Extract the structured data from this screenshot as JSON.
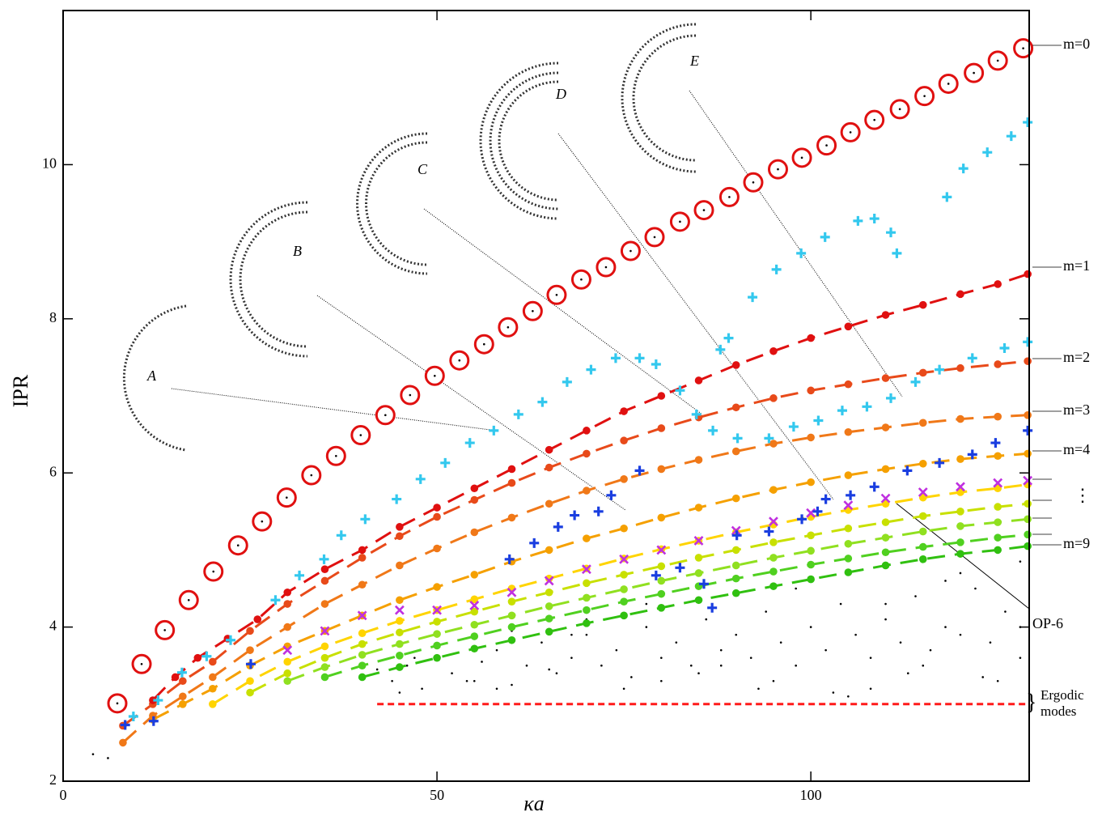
{
  "chart_data": {
    "type": "scatter",
    "xlabel": "κa",
    "ylabel": "IPR",
    "xlim": [
      0,
      129.2
    ],
    "ylim": [
      2,
      12
    ],
    "xticks": [
      0,
      50,
      100
    ],
    "yticks": [
      2,
      4,
      6,
      8,
      10
    ],
    "annotations": [
      "A",
      "B",
      "C",
      "D",
      "E"
    ],
    "right_labels": [
      "m=0",
      "m=1",
      "m=2",
      "m=3",
      "m=4",
      "⋮",
      "m=9",
      "OP-6",
      "Ergodic",
      "modes"
    ],
    "series": [
      {
        "marker": "point",
        "line": "none",
        "color": "#000000",
        "x": [
          4,
          6,
          42,
          44,
          46,
          48,
          50,
          52,
          54,
          56,
          58,
          60,
          62,
          64,
          66,
          68,
          70,
          72,
          74,
          76,
          78,
          80,
          82,
          84,
          86,
          88,
          90,
          92,
          94,
          96,
          98,
          100,
          102,
          104,
          106,
          108,
          110,
          112,
          114,
          116,
          118,
          120,
          122,
          124,
          126,
          128,
          45,
          55,
          65,
          75,
          85,
          95,
          105,
          115,
          125,
          60,
          70,
          80,
          90,
          100,
          110,
          120,
          128,
          50,
          47,
          58,
          68,
          78,
          88,
          98,
          108,
          118,
          128,
          93,
          103,
          113,
          123
        ],
        "values": [
          2.35,
          2.3,
          3.45,
          3.3,
          3.5,
          3.2,
          3.6,
          3.4,
          3.3,
          3.55,
          3.7,
          3.25,
          3.5,
          3.8,
          3.4,
          3.6,
          3.9,
          3.5,
          3.7,
          3.35,
          4.0,
          3.6,
          3.8,
          3.5,
          4.1,
          3.7,
          3.9,
          3.6,
          4.2,
          3.8,
          3.5,
          4.0,
          3.7,
          4.3,
          3.9,
          3.6,
          4.1,
          3.8,
          4.4,
          3.7,
          4.0,
          3.9,
          4.5,
          3.8,
          4.2,
          3.6,
          3.15,
          3.3,
          3.45,
          3.2,
          3.4,
          3.3,
          3.1,
          3.5,
          3.3,
          3.95,
          4.1,
          3.3,
          4.45,
          4.6,
          4.3,
          4.7,
          4.85,
          3.9,
          3.6,
          3.2,
          3.9,
          4.3,
          3.5,
          4.5,
          3.2,
          4.6,
          4.0,
          3.2,
          3.15,
          3.4,
          3.35
        ]
      },
      {
        "marker": "none",
        "line": "dashed",
        "color": "#ff1a1a",
        "x": [
          42,
          129
        ],
        "values": [
          3,
          3
        ]
      },
      {
        "marker": "dot",
        "line": "dashed",
        "color": "#30c010",
        "x": [
          40,
          45,
          50,
          55,
          60,
          65,
          70,
          75,
          80,
          85,
          90,
          95,
          100,
          105,
          110,
          115,
          120,
          125,
          129
        ],
        "values": [
          3.35,
          3.48,
          3.6,
          3.72,
          3.83,
          3.94,
          4.05,
          4.15,
          4.25,
          4.35,
          4.44,
          4.53,
          4.62,
          4.71,
          4.8,
          4.88,
          4.95,
          5.0,
          5.05
        ]
      },
      {
        "marker": "dot",
        "line": "dashed",
        "color": "#50d020",
        "x": [
          35,
          40,
          45,
          50,
          55,
          60,
          65,
          70,
          75,
          80,
          85,
          90,
          95,
          100,
          105,
          110,
          115,
          120,
          125,
          129
        ],
        "values": [
          3.35,
          3.5,
          3.63,
          3.76,
          3.88,
          4.0,
          4.11,
          4.22,
          4.33,
          4.43,
          4.53,
          4.63,
          4.72,
          4.81,
          4.89,
          4.97,
          5.04,
          5.1,
          5.16,
          5.2
        ]
      },
      {
        "marker": "dot",
        "line": "dashed",
        "color": "#90e020",
        "x": [
          30,
          35,
          40,
          45,
          50,
          55,
          60,
          65,
          70,
          75,
          80,
          85,
          90,
          95,
          100,
          105,
          110,
          115,
          120,
          125,
          129
        ],
        "values": [
          3.3,
          3.48,
          3.64,
          3.78,
          3.91,
          4.03,
          4.15,
          4.27,
          4.38,
          4.49,
          4.6,
          4.7,
          4.8,
          4.9,
          4.99,
          5.08,
          5.16,
          5.24,
          5.31,
          5.36,
          5.4
        ]
      },
      {
        "marker": "dot",
        "line": "dashed",
        "color": "#c8e000",
        "x": [
          25,
          30,
          35,
          40,
          45,
          50,
          55,
          60,
          65,
          70,
          75,
          80,
          85,
          90,
          95,
          100,
          105,
          110,
          115,
          120,
          125,
          129
        ],
        "values": [
          3.15,
          3.4,
          3.6,
          3.78,
          3.93,
          4.07,
          4.2,
          4.33,
          4.45,
          4.57,
          4.68,
          4.79,
          4.9,
          5.0,
          5.1,
          5.19,
          5.28,
          5.36,
          5.44,
          5.5,
          5.56,
          5.6
        ]
      },
      {
        "marker": "dot",
        "line": "dashed",
        "color": "#ffd400",
        "x": [
          20,
          25,
          30,
          35,
          40,
          45,
          50,
          55,
          60,
          65,
          70,
          75,
          80,
          85,
          90,
          95,
          100,
          105,
          110,
          115,
          120,
          125,
          129
        ],
        "values": [
          3.0,
          3.3,
          3.55,
          3.75,
          3.92,
          4.08,
          4.22,
          4.36,
          4.5,
          4.63,
          4.76,
          4.89,
          5.01,
          5.12,
          5.23,
          5.33,
          5.43,
          5.52,
          5.6,
          5.68,
          5.75,
          5.8,
          5.85
        ]
      },
      {
        "marker": "dot",
        "line": "dashed",
        "color": "#f5a000",
        "x": [
          12,
          16,
          20,
          25,
          30,
          35,
          40,
          45,
          50,
          55,
          60,
          65,
          70,
          75,
          80,
          85,
          90,
          95,
          100,
          105,
          110,
          115,
          120,
          125,
          129
        ],
        "values": [
          2.8,
          3.0,
          3.2,
          3.5,
          3.75,
          3.95,
          4.15,
          4.35,
          4.52,
          4.68,
          4.85,
          5.0,
          5.15,
          5.28,
          5.42,
          5.55,
          5.67,
          5.78,
          5.88,
          5.97,
          6.05,
          6.12,
          6.18,
          6.22,
          6.25
        ]
      },
      {
        "marker": "dot",
        "line": "dashed",
        "color": "#f07818",
        "x": [
          8,
          12,
          16,
          20,
          25,
          30,
          35,
          40,
          45,
          50,
          55,
          60,
          65,
          70,
          75,
          80,
          85,
          90,
          95,
          100,
          105,
          110,
          115,
          120,
          125,
          129
        ],
        "values": [
          2.5,
          2.85,
          3.1,
          3.35,
          3.7,
          4.0,
          4.3,
          4.55,
          4.8,
          5.02,
          5.23,
          5.42,
          5.6,
          5.77,
          5.92,
          6.05,
          6.17,
          6.28,
          6.38,
          6.46,
          6.53,
          6.59,
          6.65,
          6.7,
          6.73,
          6.75
        ]
      },
      {
        "marker": "dot",
        "line": "dashed",
        "color": "#e84a1a",
        "x": [
          8,
          12,
          16,
          20,
          25,
          30,
          35,
          40,
          45,
          50,
          55,
          60,
          65,
          70,
          75,
          80,
          85,
          90,
          95,
          100,
          105,
          110,
          115,
          120,
          125,
          129
        ],
        "values": [
          2.72,
          3.0,
          3.3,
          3.55,
          3.95,
          4.3,
          4.6,
          4.9,
          5.18,
          5.43,
          5.65,
          5.87,
          6.07,
          6.25,
          6.42,
          6.58,
          6.72,
          6.85,
          6.97,
          7.07,
          7.15,
          7.23,
          7.3,
          7.36,
          7.41,
          7.45
        ]
      },
      {
        "marker": "dot",
        "line": "dashed",
        "color": "#e01010",
        "x": [
          12,
          15,
          18,
          22,
          26,
          30,
          35,
          40,
          45,
          50,
          55,
          60,
          65,
          70,
          75,
          80,
          85,
          90,
          95,
          100,
          105,
          110,
          115,
          120,
          125,
          129
        ],
        "values": [
          3.05,
          3.35,
          3.6,
          3.85,
          4.1,
          4.45,
          4.75,
          5.0,
          5.3,
          5.55,
          5.8,
          6.05,
          6.3,
          6.55,
          6.8,
          7.0,
          7.2,
          7.4,
          7.58,
          7.75,
          7.9,
          8.05,
          8.18,
          8.32,
          8.45,
          8.58
        ]
      },
      {
        "marker": "x",
        "line": "none",
        "color": "#c030e0",
        "x": [
          30,
          35,
          40,
          45,
          50,
          55,
          60,
          65,
          70,
          75,
          80,
          85,
          90,
          95,
          100,
          105,
          110,
          115,
          120,
          125,
          129
        ],
        "values": [
          3.7,
          3.95,
          4.15,
          4.22,
          4.22,
          4.28,
          4.45,
          4.6,
          4.75,
          4.88,
          5.0,
          5.12,
          5.25,
          5.37,
          5.48,
          5.58,
          5.67,
          5.75,
          5.82,
          5.87,
          5.9
        ]
      },
      {
        "marker": "plus",
        "line": "none",
        "color": "#1a3ee0",
        "x": [
          8.3,
          12.1,
          25.1,
          59.7,
          63,
          66.2,
          68.4,
          71.6,
          73.3,
          77.1,
          79.3,
          82.5,
          85.7,
          86.8,
          90.1,
          94.4,
          98.8,
          100.9,
          102,
          105.3,
          108.5,
          112.9,
          117.2,
          121.6,
          124.7,
          129
        ],
        "values": [
          2.73,
          2.78,
          3.52,
          4.88,
          5.09,
          5.3,
          5.45,
          5.5,
          5.71,
          6.03,
          4.67,
          4.77,
          4.56,
          4.25,
          5.19,
          5.24,
          5.4,
          5.5,
          5.66,
          5.71,
          5.82,
          6.03,
          6.13,
          6.24,
          6.39,
          6.55
        ]
      },
      {
        "marker": "plus",
        "line": "none",
        "color": "#33c8ee",
        "x": [
          9.4,
          12.7,
          15.9,
          19.2,
          22.4,
          28.4,
          31.6,
          34.9,
          37.2,
          40.4,
          44.6,
          47.8,
          51.1,
          54.4,
          57.6,
          60.9,
          64.1,
          67.4,
          70.6,
          73.9,
          77.1,
          79.3,
          82.5,
          84.7,
          86.9,
          90.2,
          94.4,
          97.7,
          101,
          104.2,
          107.5,
          110.7,
          114,
          117.2,
          121.6,
          125.9,
          129,
          87.9,
          89,
          92.2,
          95.4,
          98.7,
          101.9,
          106.3,
          108.5,
          110.7,
          111.5,
          118.2,
          120.4,
          123.6,
          126.8,
          129
        ],
        "values": [
          2.84,
          3.05,
          3.41,
          3.62,
          3.83,
          4.35,
          4.67,
          4.88,
          5.19,
          5.4,
          5.66,
          5.92,
          6.13,
          6.39,
          6.55,
          6.76,
          6.92,
          7.18,
          7.34,
          7.49,
          7.49,
          7.41,
          7.07,
          6.76,
          6.55,
          6.45,
          6.45,
          6.6,
          6.68,
          6.81,
          6.86,
          6.97,
          7.18,
          7.34,
          7.49,
          7.62,
          7.7,
          7.6,
          7.75,
          8.28,
          8.64,
          8.85,
          9.06,
          9.27,
          9.3,
          9.12,
          8.85,
          9.58,
          9.95,
          10.16,
          10.37,
          10.55
        ]
      },
      {
        "marker": "circle-open",
        "line": "none",
        "color": "#e01010",
        "x": [
          7.25,
          10.5,
          13.6,
          16.8,
          20.1,
          23.4,
          26.6,
          29.9,
          33.2,
          36.5,
          39.8,
          43.1,
          46.4,
          49.7,
          53.0,
          56.3,
          59.5,
          62.8,
          66.0,
          69.3,
          72.6,
          75.9,
          79.1,
          82.5,
          85.7,
          89.1,
          92.3,
          95.6,
          98.8,
          102.1,
          105.3,
          108.5,
          111.9,
          115.2,
          118.4,
          121.8,
          125.0,
          128.4
        ],
        "values": [
          3.01,
          3.52,
          3.96,
          4.35,
          4.72,
          5.06,
          5.37,
          5.68,
          5.97,
          6.22,
          6.49,
          6.75,
          7.01,
          7.26,
          7.46,
          7.67,
          7.89,
          8.1,
          8.31,
          8.51,
          8.67,
          8.88,
          9.06,
          9.26,
          9.41,
          9.58,
          9.77,
          9.94,
          10.09,
          10.25,
          10.42,
          10.58,
          10.72,
          10.89,
          11.05,
          11.19,
          11.35,
          11.51
        ]
      }
    ]
  }
}
